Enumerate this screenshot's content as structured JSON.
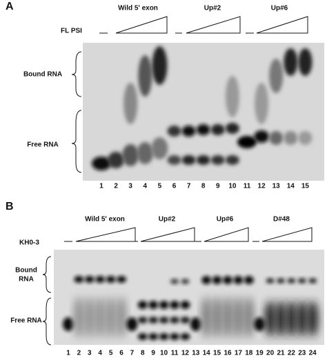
{
  "panels": [
    {
      "label": "A",
      "titrant": "FL PSI",
      "groups": [
        "Wild 5' exon",
        "Up#2",
        "Up#6"
      ],
      "rows": [
        [
          "Bound RNA"
        ],
        [
          "Free RNA"
        ]
      ],
      "lanes": [
        "1",
        "2",
        "3",
        "4",
        "5",
        "6",
        "7",
        "8",
        "9",
        "10",
        "11",
        "12",
        "13",
        "14",
        "15"
      ]
    },
    {
      "label": "B",
      "titrant": "KH0-3",
      "groups": [
        "Wild 5' exon",
        "Up#2",
        "Up#6",
        "D#48"
      ],
      "rows": [
        [
          "Bound",
          "RNA"
        ],
        [
          "Free RNA"
        ]
      ],
      "lanes": [
        "1",
        "2",
        "3",
        "4",
        "5",
        "6",
        "7",
        "8",
        "9",
        "10",
        "11",
        "12",
        "13",
        "14",
        "15",
        "16",
        "17",
        "18",
        "19",
        "20",
        "21",
        "22",
        "23",
        "24"
      ]
    }
  ]
}
